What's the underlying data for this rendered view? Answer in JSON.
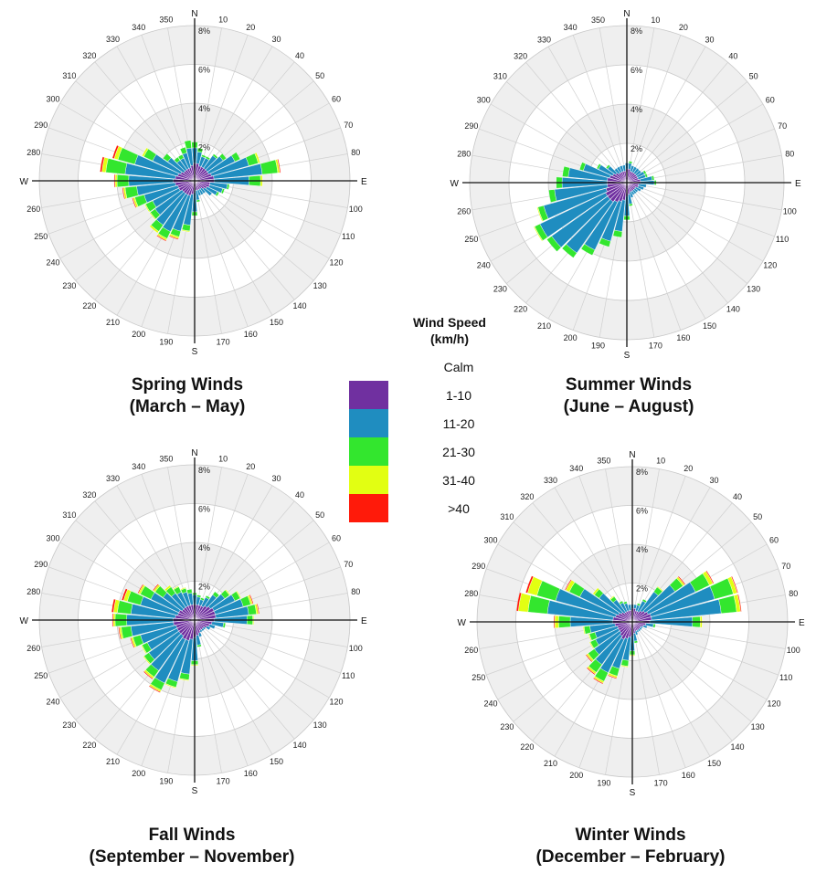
{
  "legend": {
    "title_line1": "Wind Speed",
    "title_line2": "(km/h)",
    "items": [
      {
        "label": "Calm",
        "color": ""
      },
      {
        "label": "1-10",
        "color": "#7030A0"
      },
      {
        "label": "11-20",
        "color": "#1F8DC0"
      },
      {
        "label": "21-30",
        "color": "#33E62E"
      },
      {
        "label": "31-40",
        "color": "#E2FF12"
      },
      {
        "label": ">40",
        "color": "#FF1A0A"
      }
    ]
  },
  "chart_data": [
    {
      "type": "wind-rose",
      "title_line1": "Spring Winds",
      "title_line2": "(March – May)",
      "direction_labels": {
        "N": "N",
        "E": "E",
        "S": "S",
        "W": "W"
      },
      "ring_labels": [
        "2%",
        "4%",
        "6%",
        "8%"
      ],
      "rmax_percent": 8,
      "directions": [
        10,
        20,
        30,
        40,
        50,
        60,
        70,
        80,
        90,
        100,
        110,
        120,
        130,
        140,
        150,
        160,
        170,
        180,
        190,
        200,
        210,
        220,
        230,
        240,
        250,
        260,
        270,
        280,
        290,
        300,
        310,
        320,
        330,
        340,
        350,
        360
      ],
      "angle_labels": [
        "10",
        "20",
        "30",
        "40",
        "50",
        "60",
        "70",
        "80",
        "",
        "100",
        "110",
        "120",
        "130",
        "140",
        "150",
        "160",
        "170",
        "",
        "190",
        "200",
        "210",
        "220",
        "230",
        "240",
        "250",
        "260",
        "",
        "280",
        "290",
        "300",
        "310",
        "320",
        "330",
        "340",
        "350",
        ""
      ],
      "series": [
        {
          "name": "1-10",
          "values": [
            0.9,
            0.8,
            0.8,
            0.8,
            0.8,
            0.8,
            0.9,
            1.0,
            1.0,
            0.8,
            0.8,
            0.7,
            0.6,
            0.5,
            0.5,
            0.5,
            0.5,
            0.6,
            0.7,
            0.8,
            0.8,
            0.8,
            0.8,
            0.9,
            0.9,
            1.0,
            1.1,
            1.0,
            0.9,
            0.8,
            0.7,
            0.7,
            0.7,
            0.7,
            0.8,
            0.9
          ]
        },
        {
          "name": "11-20",
          "values": [
            0.6,
            0.5,
            0.5,
            0.8,
            1.0,
            1.5,
            2.0,
            2.5,
            1.8,
            0.9,
            0.7,
            0.6,
            0.5,
            0.3,
            0.3,
            0.3,
            0.5,
            1.0,
            1.6,
            1.9,
            2.1,
            2.0,
            1.7,
            1.5,
            1.8,
            2.0,
            2.3,
            2.6,
            2.3,
            1.6,
            1.0,
            0.6,
            0.6,
            0.8,
            0.9,
            0.8
          ]
        },
        {
          "name": "21-30",
          "values": [
            0.2,
            0.1,
            0.1,
            0.1,
            0.2,
            0.3,
            0.5,
            0.8,
            0.6,
            0.1,
            0.1,
            0.1,
            0.0,
            0.0,
            0.0,
            0.0,
            0.1,
            0.2,
            0.3,
            0.3,
            0.4,
            0.4,
            0.3,
            0.4,
            0.5,
            0.6,
            0.6,
            1.0,
            0.9,
            0.5,
            0.3,
            0.2,
            0.2,
            0.3,
            0.4,
            0.3
          ]
        },
        {
          "name": "31-40",
          "values": [
            0.0,
            0.0,
            0.0,
            0.0,
            0.0,
            0.0,
            0.1,
            0.1,
            0.1,
            0.0,
            0.0,
            0.0,
            0.0,
            0.0,
            0.0,
            0.0,
            0.0,
            0.0,
            0.05,
            0.1,
            0.1,
            0.1,
            0.05,
            0.05,
            0.1,
            0.1,
            0.1,
            0.2,
            0.2,
            0.1,
            0.0,
            0.0,
            0.0,
            0.0,
            0.0,
            0.0
          ]
        },
        {
          "name": ">40",
          "values": [
            0.0,
            0.0,
            0.0,
            0.0,
            0.0,
            0.0,
            0.0,
            0.05,
            0.0,
            0.0,
            0.0,
            0.0,
            0.0,
            0.0,
            0.0,
            0.0,
            0.0,
            0.0,
            0.0,
            0.05,
            0.05,
            0.0,
            0.0,
            0.0,
            0.05,
            0.05,
            0.05,
            0.1,
            0.1,
            0.0,
            0.0,
            0.0,
            0.0,
            0.0,
            0.0,
            0.0
          ]
        }
      ]
    },
    {
      "type": "wind-rose",
      "title_line1": "Summer Winds",
      "title_line2": "(June – August)",
      "direction_labels": {
        "N": "N",
        "E": "E",
        "S": "S",
        "W": "W"
      },
      "ring_labels": [
        "2%",
        "4%",
        "6%",
        "8%"
      ],
      "rmax_percent": 8,
      "directions": [
        10,
        20,
        30,
        40,
        50,
        60,
        70,
        80,
        90,
        100,
        110,
        120,
        130,
        140,
        150,
        160,
        170,
        180,
        190,
        200,
        210,
        220,
        230,
        240,
        250,
        260,
        270,
        280,
        290,
        300,
        310,
        320,
        330,
        340,
        350,
        360
      ],
      "angle_labels": [
        "10",
        "20",
        "30",
        "40",
        "50",
        "60",
        "70",
        "80",
        "",
        "100",
        "110",
        "120",
        "130",
        "140",
        "150",
        "160",
        "170",
        "",
        "190",
        "200",
        "210",
        "220",
        "230",
        "240",
        "250",
        "260",
        "",
        "280",
        "290",
        "300",
        "310",
        "320",
        "330",
        "340",
        "350",
        ""
      ],
      "series": [
        {
          "name": "1-10",
          "values": [
            0.7,
            0.6,
            0.6,
            0.6,
            0.6,
            0.6,
            0.6,
            0.7,
            0.7,
            0.6,
            0.6,
            0.5,
            0.5,
            0.5,
            0.5,
            0.5,
            0.6,
            0.7,
            0.9,
            1.0,
            1.1,
            1.2,
            1.2,
            1.2,
            1.1,
            1.0,
            1.0,
            1.0,
            0.9,
            0.8,
            0.7,
            0.6,
            0.6,
            0.6,
            0.6,
            0.7
          ]
        },
        {
          "name": "11-20",
          "values": [
            0.3,
            0.3,
            0.3,
            0.3,
            0.3,
            0.4,
            0.4,
            0.6,
            0.7,
            0.4,
            0.3,
            0.3,
            0.2,
            0.2,
            0.2,
            0.3,
            0.5,
            1.0,
            1.6,
            2.1,
            2.7,
            3.2,
            3.5,
            3.7,
            3.3,
            2.7,
            2.3,
            2.0,
            1.4,
            0.8,
            0.5,
            0.3,
            0.3,
            0.3,
            0.3,
            0.3
          ]
        },
        {
          "name": "21-30",
          "values": [
            0.1,
            0.0,
            0.0,
            0.0,
            0.0,
            0.1,
            0.1,
            0.1,
            0.1,
            0.0,
            0.0,
            0.0,
            0.0,
            0.0,
            0.0,
            0.0,
            0.1,
            0.2,
            0.3,
            0.3,
            0.3,
            0.3,
            0.3,
            0.3,
            0.3,
            0.3,
            0.3,
            0.3,
            0.2,
            0.1,
            0.1,
            0.0,
            0.0,
            0.0,
            0.0,
            0.0
          ]
        },
        {
          "name": "31-40",
          "values": [
            0.0,
            0.0,
            0.0,
            0.0,
            0.0,
            0.0,
            0.0,
            0.0,
            0.0,
            0.0,
            0.0,
            0.0,
            0.0,
            0.0,
            0.0,
            0.0,
            0.0,
            0.0,
            0.0,
            0.0,
            0.0,
            0.0,
            0.0,
            0.05,
            0.05,
            0.0,
            0.0,
            0.0,
            0.0,
            0.0,
            0.0,
            0.0,
            0.0,
            0.0,
            0.0,
            0.0
          ]
        },
        {
          "name": ">40",
          "values": [
            0,
            0,
            0,
            0,
            0,
            0,
            0,
            0,
            0,
            0,
            0,
            0,
            0,
            0,
            0,
            0,
            0,
            0,
            0,
            0,
            0,
            0,
            0,
            0,
            0,
            0,
            0,
            0,
            0,
            0,
            0,
            0,
            0,
            0,
            0,
            0
          ]
        }
      ]
    },
    {
      "type": "wind-rose",
      "title_line1": "Fall Winds",
      "title_line2": "(September – November)",
      "direction_labels": {
        "N": "N",
        "E": "E",
        "S": "S",
        "W": "W"
      },
      "ring_labels": [
        "2%",
        "4%",
        "6%",
        "8%"
      ],
      "rmax_percent": 8,
      "directions": [
        10,
        20,
        30,
        40,
        50,
        60,
        70,
        80,
        90,
        100,
        110,
        120,
        130,
        140,
        150,
        160,
        170,
        180,
        190,
        200,
        210,
        220,
        230,
        240,
        250,
        260,
        270,
        280,
        290,
        300,
        310,
        320,
        330,
        340,
        350,
        360
      ],
      "angle_labels": [
        "10",
        "20",
        "30",
        "40",
        "50",
        "60",
        "70",
        "80",
        "",
        "100",
        "110",
        "120",
        "130",
        "140",
        "150",
        "160",
        "170",
        "",
        "190",
        "200",
        "210",
        "220",
        "230",
        "240",
        "250",
        "260",
        "",
        "280",
        "290",
        "300",
        "310",
        "320",
        "330",
        "340",
        "350",
        ""
      ],
      "series": [
        {
          "name": "1-10",
          "values": [
            0.8,
            0.8,
            0.8,
            0.9,
            1.0,
            1.1,
            1.1,
            1.1,
            1.0,
            0.9,
            0.8,
            0.7,
            0.6,
            0.6,
            0.6,
            0.7,
            0.8,
            0.9,
            1.0,
            1.1,
            1.1,
            1.0,
            1.0,
            1.0,
            1.0,
            1.1,
            1.1,
            1.0,
            0.9,
            0.9,
            0.8,
            0.8,
            0.8,
            0.8,
            0.8,
            0.8
          ]
        },
        {
          "name": "11-20",
          "values": [
            0.4,
            0.3,
            0.5,
            0.7,
            0.9,
            1.2,
            1.5,
            1.7,
            1.7,
            0.6,
            0.3,
            0.2,
            0.1,
            0.1,
            0.1,
            0.2,
            0.5,
            1.2,
            1.8,
            2.2,
            2.5,
            2.2,
            1.9,
            1.7,
            1.9,
            2.2,
            2.4,
            2.3,
            2.0,
            1.6,
            1.2,
            0.9,
            0.8,
            0.7,
            0.6,
            0.5
          ]
        },
        {
          "name": "21-30",
          "values": [
            0.1,
            0.1,
            0.1,
            0.2,
            0.3,
            0.3,
            0.4,
            0.4,
            0.3,
            0.1,
            0.0,
            0.0,
            0.0,
            0.0,
            0.0,
            0.0,
            0.1,
            0.2,
            0.3,
            0.3,
            0.4,
            0.4,
            0.3,
            0.3,
            0.4,
            0.5,
            0.6,
            0.7,
            0.7,
            0.6,
            0.5,
            0.4,
            0.3,
            0.2,
            0.2,
            0.1
          ]
        },
        {
          "name": "31-40",
          "values": [
            0.0,
            0.0,
            0.0,
            0.0,
            0.05,
            0.05,
            0.1,
            0.1,
            0.05,
            0.0,
            0.0,
            0.0,
            0.0,
            0.0,
            0.0,
            0.0,
            0.0,
            0.05,
            0.05,
            0.05,
            0.1,
            0.1,
            0.05,
            0.05,
            0.1,
            0.1,
            0.1,
            0.2,
            0.2,
            0.1,
            0.1,
            0.1,
            0.05,
            0.05,
            0.0,
            0.0
          ]
        },
        {
          "name": ">40",
          "values": [
            0,
            0,
            0,
            0,
            0,
            0,
            0.05,
            0.05,
            0,
            0,
            0,
            0,
            0,
            0,
            0,
            0,
            0,
            0,
            0,
            0,
            0.05,
            0.05,
            0,
            0,
            0.05,
            0.05,
            0.05,
            0.1,
            0.1,
            0.05,
            0.05,
            0,
            0,
            0,
            0,
            0
          ]
        }
      ]
    },
    {
      "type": "wind-rose",
      "title_line1": "Winter Winds",
      "title_line2": "(December – February)",
      "direction_labels": {
        "N": "N",
        "E": "E",
        "S": "S",
        "W": "W"
      },
      "ring_labels": [
        "2%",
        "4%",
        "6%",
        "8%"
      ],
      "rmax_percent": 8,
      "directions": [
        10,
        20,
        30,
        40,
        50,
        60,
        70,
        80,
        90,
        100,
        110,
        120,
        130,
        140,
        150,
        160,
        170,
        180,
        190,
        200,
        210,
        220,
        230,
        240,
        250,
        260,
        270,
        280,
        290,
        300,
        310,
        320,
        330,
        340,
        350,
        360
      ],
      "angle_labels": [
        "10",
        "20",
        "30",
        "40",
        "50",
        "60",
        "70",
        "80",
        "",
        "100",
        "110",
        "120",
        "130",
        "140",
        "150",
        "160",
        "170",
        "",
        "190",
        "200",
        "210",
        "220",
        "230",
        "240",
        "250",
        "260",
        "",
        "280",
        "290",
        "300",
        "310",
        "320",
        "330",
        "340",
        "350",
        ""
      ],
      "series": [
        {
          "name": "1-10",
          "values": [
            0.7,
            0.6,
            0.6,
            0.7,
            0.8,
            0.9,
            1.0,
            1.0,
            0.9,
            0.7,
            0.6,
            0.5,
            0.5,
            0.5,
            0.5,
            0.5,
            0.6,
            0.7,
            0.8,
            0.9,
            1.0,
            0.9,
            0.8,
            0.8,
            0.8,
            0.9,
            1.0,
            1.0,
            0.9,
            0.8,
            0.7,
            0.6,
            0.6,
            0.6,
            0.6,
            0.7
          ]
        },
        {
          "name": "11-20",
          "values": [
            0.2,
            0.3,
            0.6,
            1.2,
            1.9,
            2.7,
            3.4,
            3.6,
            2.2,
            0.4,
            0.2,
            0.1,
            0.1,
            0.1,
            0.1,
            0.2,
            0.4,
            0.8,
            1.2,
            1.6,
            1.9,
            1.8,
            1.6,
            1.3,
            1.2,
            1.3,
            2.2,
            3.4,
            3.2,
            2.2,
            1.4,
            0.8,
            0.5,
            0.4,
            0.3,
            0.2
          ]
        },
        {
          "name": "21-30",
          "values": [
            0.0,
            0.1,
            0.1,
            0.3,
            0.5,
            0.8,
            1.0,
            0.8,
            0.4,
            0.1,
            0.0,
            0.0,
            0.0,
            0.0,
            0.0,
            0.0,
            0.1,
            0.2,
            0.3,
            0.4,
            0.5,
            0.5,
            0.4,
            0.3,
            0.3,
            0.3,
            0.6,
            1.0,
            1.0,
            0.6,
            0.3,
            0.2,
            0.1,
            0.1,
            0.0,
            0.0
          ]
        },
        {
          "name": "31-40",
          "values": [
            0.0,
            0.0,
            0.0,
            0.05,
            0.1,
            0.2,
            0.2,
            0.2,
            0.1,
            0.0,
            0.0,
            0.0,
            0.0,
            0.0,
            0.0,
            0.0,
            0.0,
            0.05,
            0.05,
            0.1,
            0.1,
            0.1,
            0.1,
            0.05,
            0.05,
            0.05,
            0.2,
            0.5,
            0.5,
            0.2,
            0.1,
            0.05,
            0.0,
            0.0,
            0.0,
            0.0
          ]
        },
        {
          "name": ">40",
          "values": [
            0,
            0,
            0,
            0,
            0.05,
            0.05,
            0.05,
            0.05,
            0,
            0,
            0,
            0,
            0,
            0,
            0,
            0,
            0,
            0,
            0,
            0.05,
            0.05,
            0.05,
            0.05,
            0,
            0,
            0,
            0.05,
            0.1,
            0.1,
            0.05,
            0,
            0,
            0,
            0,
            0,
            0
          ]
        }
      ]
    }
  ]
}
